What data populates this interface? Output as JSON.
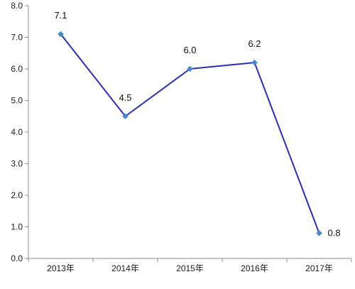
{
  "chart_data": {
    "type": "line",
    "categories": [
      "2013年",
      "2014年",
      "2015年",
      "2016年",
      "2017年"
    ],
    "series": [
      {
        "values": [
          7.1,
          4.5,
          6.0,
          6.2,
          0.8
        ]
      }
    ],
    "data_labels": [
      "7.1",
      "4.5",
      "6.0",
      "6.2",
      "0.8"
    ],
    "y_tick_labels": [
      "0.0",
      "1.0",
      "2.0",
      "3.0",
      "4.0",
      "5.0",
      "6.0",
      "7.0",
      "8.0"
    ],
    "ylim": [
      0,
      8
    ],
    "grid": false,
    "legend": "none",
    "colors": {
      "line": "#2a2fb8",
      "marker": "#4a86c8",
      "axis": "#8c8c8c"
    }
  }
}
